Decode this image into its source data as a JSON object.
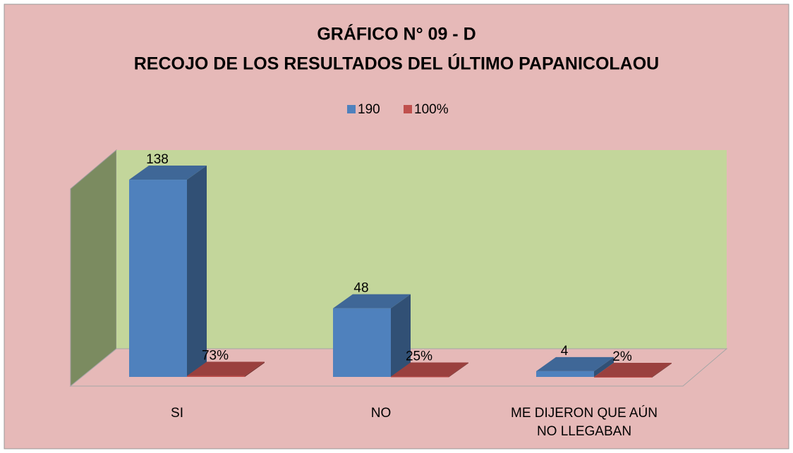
{
  "chart_data": {
    "type": "bar3d",
    "title": "GRÁFICO N° 09 - D",
    "subtitle": "RECOJO DE LOS RESULTADOS DEL ÚLTIMO PAPANICOLAOU",
    "categories": [
      "SI",
      "NO",
      "ME DIJERON QUE AÚN NO LLEGABAN"
    ],
    "series": [
      {
        "name": "190",
        "color": "#4f81bd",
        "values": [
          138,
          48,
          4
        ]
      },
      {
        "name": "100%",
        "color": "#c0504d",
        "values": [
          0.73,
          0.25,
          0.02
        ],
        "value_labels": [
          "73%",
          "25%",
          "2%"
        ]
      }
    ],
    "ylim": [
      0,
      140
    ],
    "legend": "top"
  }
}
